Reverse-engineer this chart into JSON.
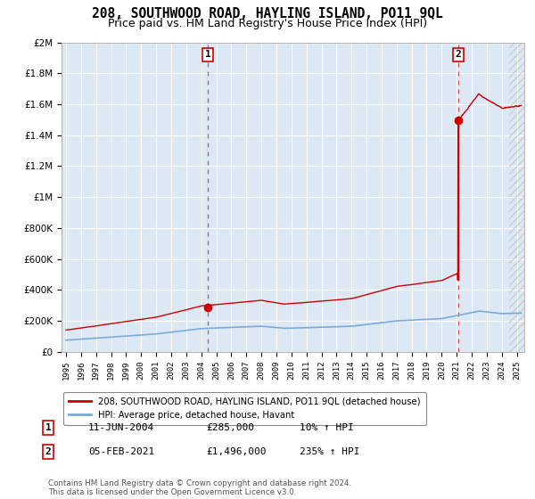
{
  "title": "208, SOUTHWOOD ROAD, HAYLING ISLAND, PO11 9QL",
  "subtitle": "Price paid vs. HM Land Registry's House Price Index (HPI)",
  "title_fontsize": 10.5,
  "subtitle_fontsize": 9,
  "bg_color": "#dce9f5",
  "grid_color": "#ffffff",
  "sale1_date_num": 2004.44,
  "sale1_price": 285000,
  "sale2_date_num": 2021.09,
  "sale2_price": 1496000,
  "legend_label_red": "208, SOUTHWOOD ROAD, HAYLING ISLAND, PO11 9QL (detached house)",
  "legend_label_blue": "HPI: Average price, detached house, Havant",
  "annotation1_label": "1",
  "annotation2_label": "2",
  "table_row1": [
    "1",
    "11-JUN-2004",
    "£285,000",
    "10% ↑ HPI"
  ],
  "table_row2": [
    "2",
    "05-FEB-2021",
    "£1,496,000",
    "235% ↑ HPI"
  ],
  "copyright": "Contains HM Land Registry data © Crown copyright and database right 2024.\nThis data is licensed under the Open Government Licence v3.0.",
  "ylim": [
    0,
    2000000
  ],
  "xlim_start": 1994.7,
  "xlim_end": 2025.5,
  "red_color": "#cc0000",
  "blue_color": "#7aaadd",
  "marker_color": "#cc0000",
  "hatch_start": 2024.5
}
